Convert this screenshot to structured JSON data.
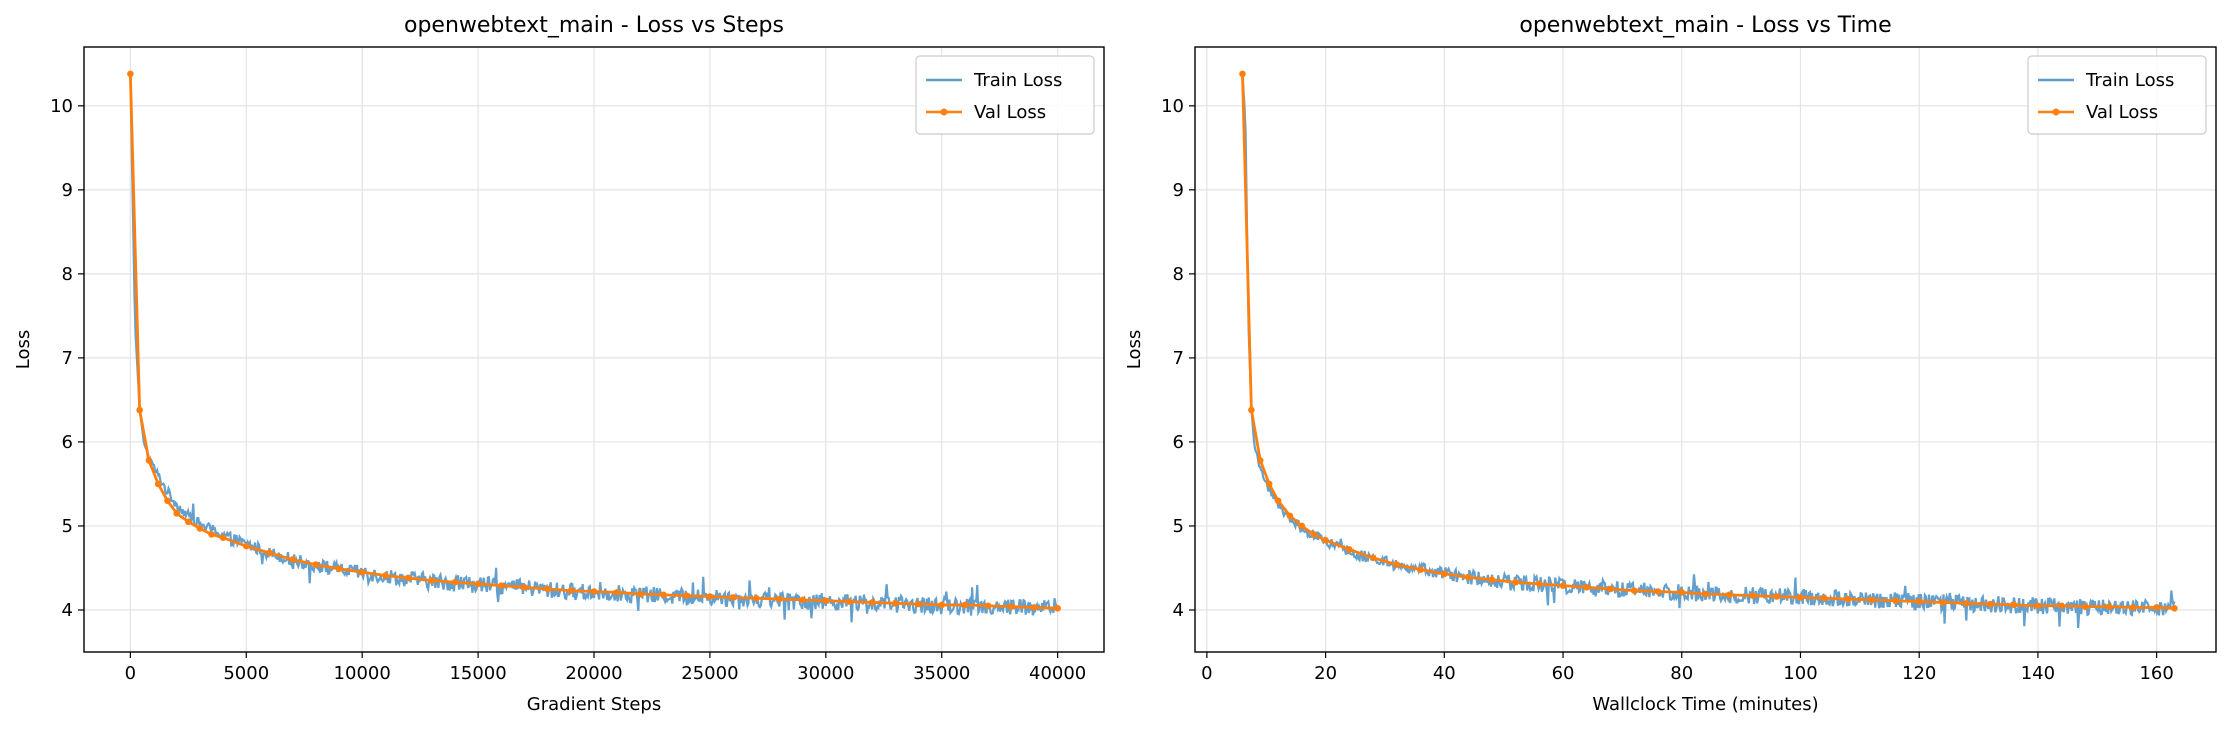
{
  "chart_data": [
    {
      "type": "line",
      "title": "openwebtext_main - Loss vs Steps",
      "xlabel": "Gradient Steps",
      "ylabel": "Loss",
      "xlim": [
        -2000,
        42000
      ],
      "ylim": [
        3.5,
        10.7
      ],
      "xticks": [
        0,
        5000,
        10000,
        15000,
        20000,
        25000,
        30000,
        35000,
        40000
      ],
      "yticks": [
        4,
        5,
        6,
        7,
        8,
        9,
        10
      ],
      "grid": true,
      "legend_position": "upper-right",
      "series": [
        {
          "name": "Train Loss",
          "color": "#5b9bcb",
          "x": [
            0,
            200,
            400,
            600,
            800,
            1000,
            1500,
            2000,
            2500,
            3000,
            4000,
            5000,
            6000,
            7000,
            8000,
            9000,
            10000,
            11000,
            12000,
            13000,
            14000,
            15000,
            16000,
            17000,
            18000,
            19000,
            20000,
            21000,
            22000,
            23000,
            24000,
            25000,
            26000,
            27000,
            28000,
            29000,
            30000,
            31000,
            32000,
            33000,
            34000,
            35000,
            36000,
            37000,
            38000,
            39000,
            40000
          ],
          "y": [
            10.38,
            7.4,
            6.4,
            5.95,
            5.8,
            5.7,
            5.45,
            5.25,
            5.12,
            5.02,
            4.9,
            4.78,
            4.68,
            4.6,
            4.53,
            4.48,
            4.44,
            4.4,
            4.37,
            4.34,
            4.32,
            4.3,
            4.28,
            4.26,
            4.24,
            4.22,
            4.21,
            4.2,
            4.18,
            4.17,
            4.16,
            4.15,
            4.14,
            4.13,
            4.12,
            4.11,
            4.1,
            4.09,
            4.08,
            4.07,
            4.06,
            4.05,
            4.05,
            4.04,
            4.04,
            4.03,
            4.02
          ]
        },
        {
          "name": "Val Loss",
          "color": "#ff7f0e",
          "x": [
            0,
            400,
            800,
            1200,
            1600,
            2000,
            2500,
            3000,
            3500,
            4000,
            5000,
            6000,
            7000,
            8000,
            9000,
            10000,
            11000,
            12000,
            13000,
            14000,
            15000,
            16000,
            17000,
            18000,
            19000,
            20000,
            21000,
            22000,
            23000,
            24000,
            25000,
            26000,
            27000,
            28000,
            29000,
            30000,
            31000,
            32000,
            33000,
            34000,
            35000,
            36000,
            37000,
            38000,
            39000,
            40000
          ],
          "y": [
            10.38,
            6.38,
            5.78,
            5.5,
            5.3,
            5.15,
            5.05,
            4.97,
            4.9,
            4.86,
            4.76,
            4.68,
            4.6,
            4.54,
            4.49,
            4.45,
            4.41,
            4.38,
            4.35,
            4.33,
            4.31,
            4.29,
            4.27,
            4.25,
            4.23,
            4.22,
            4.21,
            4.19,
            4.18,
            4.17,
            4.16,
            4.15,
            4.14,
            4.13,
            4.12,
            4.11,
            4.1,
            4.09,
            4.08,
            4.07,
            4.06,
            4.06,
            4.05,
            4.04,
            4.03,
            4.02
          ]
        }
      ]
    },
    {
      "type": "line",
      "title": "openwebtext_main - Loss vs Time",
      "xlabel": "Wallclock Time (minutes)",
      "ylabel": "Loss",
      "xlim": [
        -2,
        170
      ],
      "ylim": [
        3.5,
        10.7
      ],
      "xticks": [
        0,
        20,
        40,
        60,
        80,
        100,
        120,
        140,
        160
      ],
      "yticks": [
        4,
        5,
        6,
        7,
        8,
        9,
        10
      ],
      "grid": true,
      "legend_position": "upper-right",
      "series": [
        {
          "name": "Train Loss",
          "color": "#5b9bcb",
          "x": [
            6,
            6.5,
            7,
            7.5,
            8,
            9,
            10,
            12,
            14,
            16,
            18,
            20,
            24,
            28,
            32,
            36,
            40,
            44,
            48,
            52,
            56,
            60,
            64,
            68,
            72,
            76,
            80,
            84,
            88,
            92,
            96,
            100,
            104,
            108,
            112,
            116,
            120,
            124,
            128,
            132,
            136,
            140,
            144,
            148,
            152,
            156,
            160,
            163
          ],
          "y": [
            10.38,
            9.8,
            7.4,
            6.4,
            5.95,
            5.7,
            5.5,
            5.25,
            5.1,
            4.98,
            4.9,
            4.82,
            4.7,
            4.61,
            4.54,
            4.48,
            4.43,
            4.39,
            4.36,
            4.33,
            4.31,
            4.29,
            4.27,
            4.25,
            4.23,
            4.22,
            4.21,
            4.19,
            4.18,
            4.17,
            4.16,
            4.15,
            4.14,
            4.13,
            4.12,
            4.11,
            4.1,
            4.09,
            4.08,
            4.07,
            4.06,
            4.05,
            4.05,
            4.04,
            4.04,
            4.03,
            4.03,
            4.02
          ]
        },
        {
          "name": "Val Loss",
          "color": "#ff7f0e",
          "x": [
            6,
            7.5,
            9,
            10.5,
            12,
            14,
            16,
            18,
            20,
            24,
            28,
            32,
            36,
            40,
            44,
            48,
            52,
            56,
            60,
            64,
            68,
            72,
            76,
            80,
            84,
            88,
            92,
            96,
            100,
            104,
            108,
            112,
            116,
            120,
            124,
            128,
            132,
            136,
            140,
            144,
            148,
            152,
            156,
            160,
            163
          ],
          "y": [
            10.38,
            6.38,
            5.78,
            5.5,
            5.3,
            5.12,
            5.0,
            4.9,
            4.83,
            4.72,
            4.62,
            4.54,
            4.48,
            4.43,
            4.39,
            4.36,
            4.33,
            4.31,
            4.29,
            4.27,
            4.25,
            4.23,
            4.22,
            4.21,
            4.19,
            4.18,
            4.17,
            4.16,
            4.15,
            4.14,
            4.13,
            4.12,
            4.11,
            4.1,
            4.09,
            4.08,
            4.07,
            4.06,
            4.05,
            4.05,
            4.04,
            4.04,
            4.03,
            4.03,
            4.02
          ]
        }
      ]
    }
  ]
}
